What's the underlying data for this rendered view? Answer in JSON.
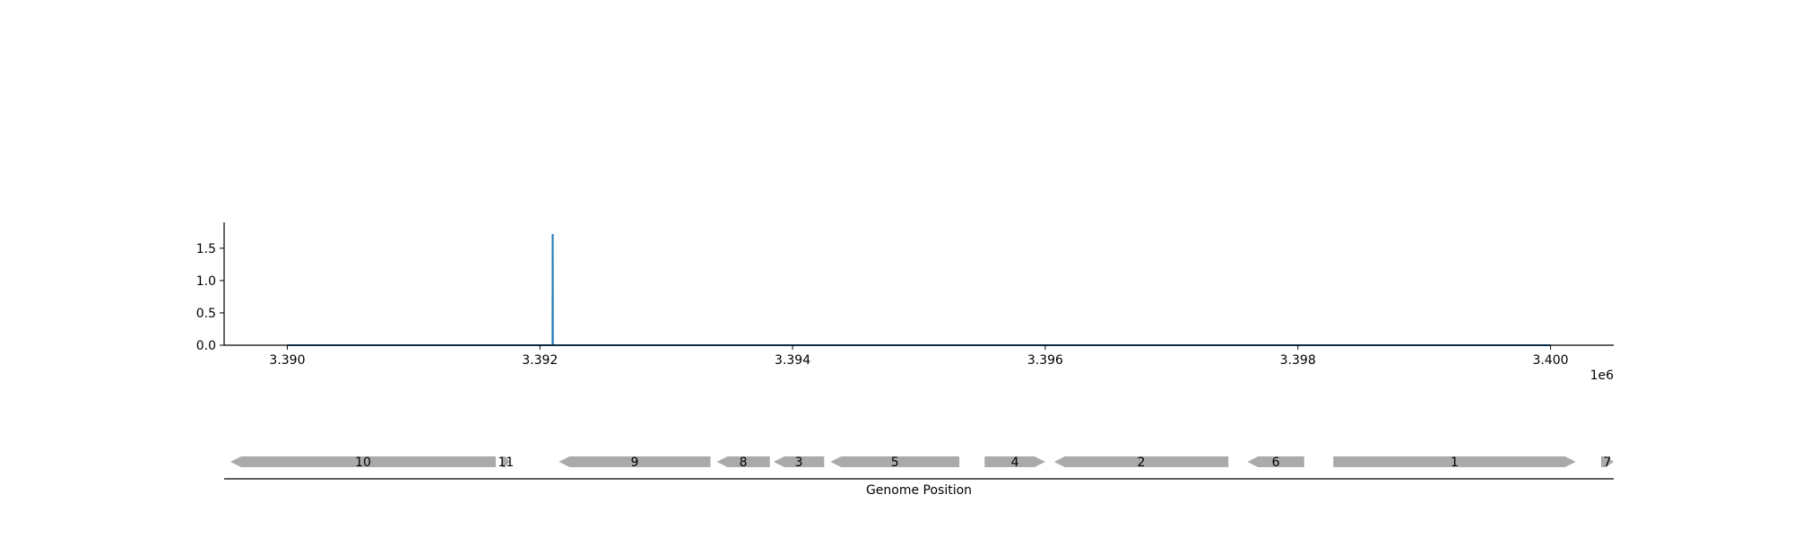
{
  "chart_data": [
    {
      "type": "line",
      "x": [
        3390000,
        3392100,
        3392101,
        3392102,
        3400000
      ],
      "series": [
        {
          "values": [
            0,
            0,
            1.72,
            0,
            0
          ]
        }
      ],
      "x_ticks": [
        3390000,
        3392000,
        3394000,
        3396000,
        3398000,
        3400000
      ],
      "x_tick_labels": [
        "3.390",
        "3.392",
        "3.394",
        "3.396",
        "3.398",
        "3.400"
      ],
      "x_offset_label": "1e6",
      "y_ticks": [
        0.0,
        0.5,
        1.0,
        1.5
      ],
      "y_tick_labels": [
        "0.0",
        "0.5",
        "1.0",
        "1.5"
      ],
      "xlim": [
        3389500,
        3400500
      ],
      "ylim": [
        0,
        1.9
      ],
      "grid": false,
      "series_color": "#1f77b4"
    },
    {
      "type": "gene-track",
      "xlabel": "Genome Position",
      "xlim": [
        3389500,
        3400500
      ],
      "color": "#aaaaaa",
      "genes": [
        {
          "label": "10",
          "start": 3389550,
          "end": 3391650,
          "strand": -1
        },
        {
          "label": "11",
          "start": 3391700,
          "end": 3391760,
          "strand": 1
        },
        {
          "label": "9",
          "start": 3392150,
          "end": 3393350,
          "strand": -1
        },
        {
          "label": "8",
          "start": 3393400,
          "end": 3393820,
          "strand": -1
        },
        {
          "label": "3",
          "start": 3393850,
          "end": 3394250,
          "strand": -1
        },
        {
          "label": "5",
          "start": 3394300,
          "end": 3395320,
          "strand": -1
        },
        {
          "label": "4",
          "start": 3395520,
          "end": 3396000,
          "strand": 1
        },
        {
          "label": "2",
          "start": 3396070,
          "end": 3397450,
          "strand": -1
        },
        {
          "label": "6",
          "start": 3397600,
          "end": 3398050,
          "strand": -1
        },
        {
          "label": "1",
          "start": 3398280,
          "end": 3400200,
          "strand": 1
        },
        {
          "label": "7",
          "start": 3400400,
          "end": 3400500,
          "strand": 1
        }
      ]
    }
  ]
}
